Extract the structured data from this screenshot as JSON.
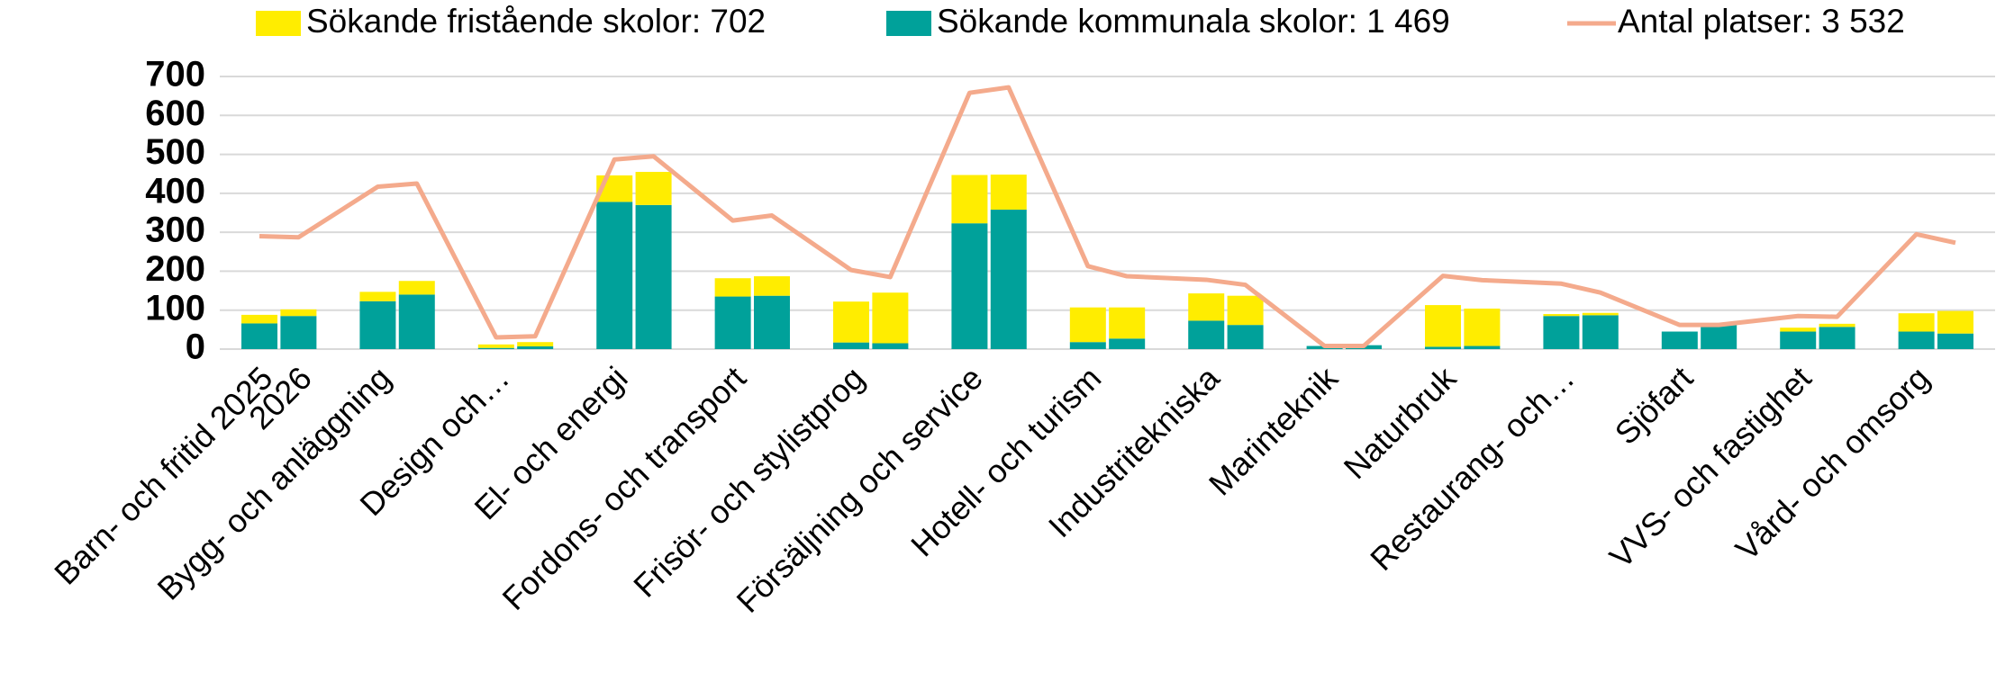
{
  "chart_data": {
    "type": "bar",
    "categories": [
      "Barn- och fritid 2025",
      "2026",
      "Bygg- och anläggning",
      null,
      "Design och…",
      null,
      "El- och energi",
      null,
      "Fordons- och transport",
      null,
      "Frisör- och stylistprog",
      null,
      "Försäljning och service",
      null,
      "Hotell- och turism",
      null,
      "Industritekniska",
      null,
      "Marinteknik",
      null,
      "Naturbruk",
      null,
      "Restaurang- och…",
      null,
      "Sjöfart",
      null,
      "VVS- och fastighet",
      null,
      "Vård- och omsorg",
      null
    ],
    "series": [
      {
        "name": "Sökande fristående skolor: 702",
        "type": "bar",
        "color": "#ffed00",
        "values": [
          22,
          17,
          24,
          35,
          9,
          11,
          68,
          85,
          47,
          50,
          105,
          130,
          124,
          90,
          89,
          80,
          70,
          75,
          0,
          0,
          107,
          96,
          5,
          6,
          0,
          0,
          10,
          8,
          47,
          58
        ]
      },
      {
        "name": "Sökande kommunala skolor: 1 469",
        "type": "bar",
        "color": "#00a19a",
        "values": [
          66,
          85,
          123,
          140,
          3,
          7,
          378,
          370,
          135,
          137,
          17,
          15,
          323,
          358,
          18,
          27,
          73,
          62,
          8,
          10,
          6,
          8,
          85,
          87,
          45,
          62,
          45,
          57,
          45,
          40
        ]
      },
      {
        "name": "Antal platser: 3 532",
        "type": "line",
        "color": "#f4aa8c",
        "values": [
          290,
          287,
          417,
          425,
          30,
          33,
          487,
          495,
          330,
          343,
          203,
          185,
          658,
          672,
          213,
          187,
          178,
          165,
          8,
          8,
          188,
          177,
          168,
          145,
          62,
          62,
          85,
          83,
          295,
          273
        ]
      }
    ],
    "ylim": [
      0,
      700
    ],
    "yticks": [
      0,
      100,
      200,
      300,
      400,
      500,
      600,
      700
    ],
    "grid": true,
    "legend": "top"
  }
}
